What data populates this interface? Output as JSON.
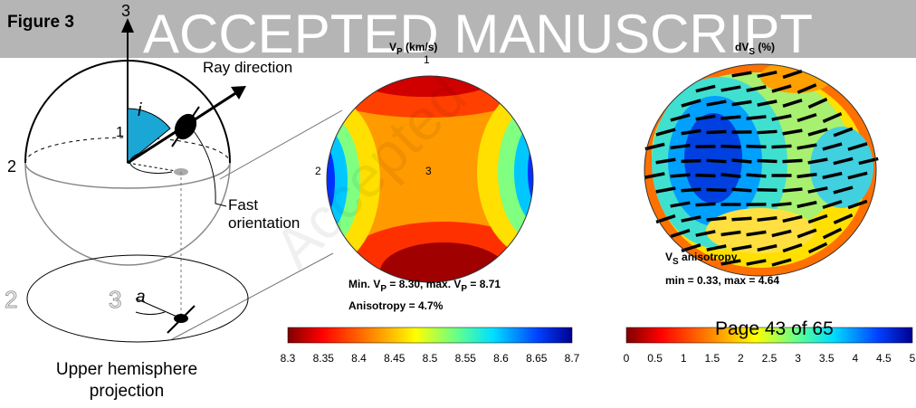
{
  "figure_label": "Figure 3",
  "watermark": "ACCEPTED MANUSCRIPT",
  "diagonal_watermark": "Accepted",
  "page_footer": "Page 43 of 65",
  "diagram": {
    "axis_3": "3",
    "axis_1": "1",
    "axis_2": "2",
    "angle_i": "i",
    "ray_label": "Ray direction",
    "fast_label": [
      "Fast",
      "orientation"
    ],
    "projection": {
      "axis_2": "2",
      "axis_3": "3",
      "angle_a": "a",
      "caption": [
        "Upper hemisphere",
        "projection"
      ]
    }
  },
  "vp_panel": {
    "title": [
      "V",
      "P",
      " (km/s)"
    ],
    "axis_1": "1",
    "axis_2": "2",
    "axis_3": "3",
    "min_max": [
      "Min. V",
      "P",
      " =  8.30, max. V",
      "P",
      " = 8.71"
    ],
    "anisotropy": "Anisotropy =  4.7%",
    "colorbar_ticks": [
      "8.3",
      "8.35",
      "8.4",
      "8.45",
      "8.5",
      "8.55",
      "8.6",
      "8.65",
      "8.7"
    ]
  },
  "dvs_panel": {
    "title": [
      "dV",
      "S",
      " (%)"
    ],
    "label": [
      "V",
      "S",
      " anisotropy"
    ],
    "min_max": "min = 0.33, max = 4.64",
    "colorbar_ticks": [
      "0",
      "0.5",
      "1",
      "1.5",
      "2",
      "2.5",
      "3",
      "3.5",
      "4",
      "4.5",
      "5"
    ]
  }
}
